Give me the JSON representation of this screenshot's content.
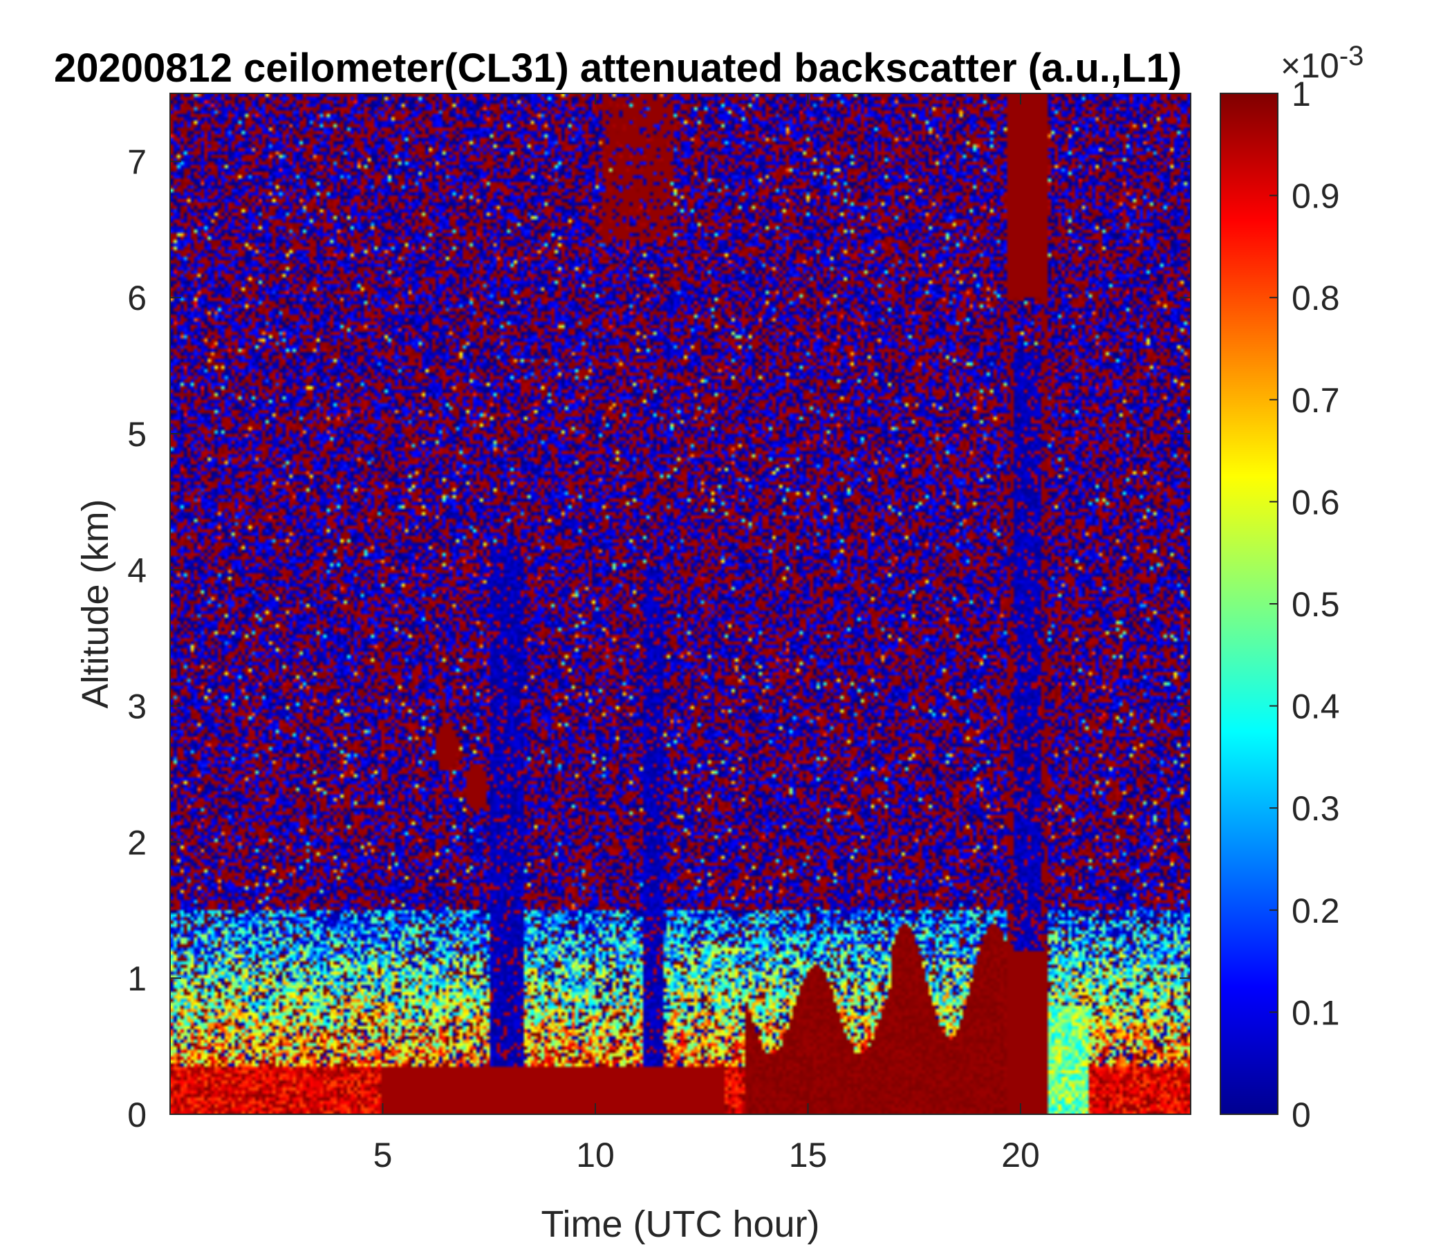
{
  "chart_data": {
    "type": "heatmap",
    "title": "20200812 ceilometer(CL31) attenuated backscatter (a.u.,L1)",
    "xlabel": "Time (UTC hour)",
    "ylabel": "Altitude (km)",
    "xlim": [
      0,
      24
    ],
    "ylim": [
      0,
      7.5
    ],
    "xticks": [
      5,
      10,
      15,
      20
    ],
    "yticks": [
      0,
      1,
      2,
      3,
      4,
      5,
      6,
      7
    ],
    "colorbar": {
      "colormap": "jet",
      "clim": [
        0,
        1
      ],
      "ticks": [
        0,
        0.1,
        0.2,
        0.3,
        0.4,
        0.5,
        0.6,
        0.7,
        0.8,
        0.9,
        1
      ],
      "multiplier_base": "×10",
      "multiplier_exponent": "-3"
    },
    "features": {
      "surface_layer_top_km": 0.35,
      "clear_columns": [
        {
          "t_start": 7.5,
          "t_end": 8.3,
          "z_bottom": 0.35,
          "z_top": 4.2
        },
        {
          "t_start": 11.1,
          "t_end": 11.6,
          "z_bottom": 0.35,
          "z_top": 4.0
        },
        {
          "t_start": 19.8,
          "t_end": 20.5,
          "z_bottom": 0.1,
          "z_top": 5.6
        }
      ],
      "rain_column": {
        "t_start": 19.7,
        "t_end": 20.6,
        "z_bottom": 0,
        "z_top": 7.5
      },
      "high_cloud": {
        "t_start": 10.2,
        "t_end": 11.8,
        "z_bottom": 6.4,
        "z_top": 7.5
      },
      "convective_boundary_layer": [
        {
          "t_start": 13.5,
          "t_end": 17.0,
          "z_top": 1.1
        },
        {
          "t_start": 17.0,
          "t_end": 20.0,
          "z_top": 1.4
        }
      ],
      "aerosol_plumes": [
        {
          "t_center": 6.5,
          "z_center": 2.7
        },
        {
          "t_center": 7.2,
          "z_center": 2.4
        }
      ]
    }
  }
}
